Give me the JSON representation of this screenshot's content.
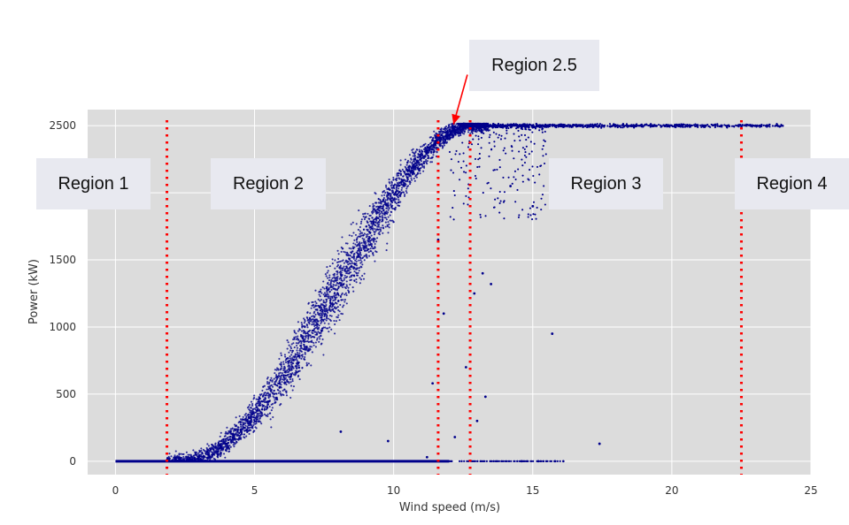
{
  "chart_data": {
    "type": "scatter",
    "title": "",
    "xlabel": "Wind speed (m/s)",
    "ylabel": "Power (kW)",
    "xlim": [
      -1,
      25
    ],
    "ylim": [
      -100,
      2620
    ],
    "x_ticks": [
      0,
      5,
      10,
      15,
      20,
      25
    ],
    "y_ticks": [
      0,
      500,
      1000,
      1500,
      2000,
      2500
    ],
    "y_tick_labels": [
      "0",
      "500",
      "1000",
      "1500",
      "",
      "2500"
    ],
    "grid": true,
    "series": [
      {
        "color": "#00008b",
        "description": "power curve: ~0 kW below 2 m/s, rising roughly cubically to ~2500 kW at ~12.5 m/s, flat at ~2500 kW to ~24 m/s, plus a line of 0 kW points up to ~16 m/s",
        "outliers": [
          {
            "x": 15.7,
            "y": 950
          },
          {
            "x": 17.4,
            "y": 130
          },
          {
            "x": 13.0,
            "y": 300
          },
          {
            "x": 13.3,
            "y": 480
          },
          {
            "x": 12.6,
            "y": 700
          },
          {
            "x": 11.4,
            "y": 580
          },
          {
            "x": 11.8,
            "y": 1100
          },
          {
            "x": 12.9,
            "y": 1250
          },
          {
            "x": 13.5,
            "y": 1320
          },
          {
            "x": 11.2,
            "y": 30
          },
          {
            "x": 12.2,
            "y": 180
          },
          {
            "x": 13.2,
            "y": 1400
          },
          {
            "x": 14.2,
            "y": 2050
          },
          {
            "x": 15.0,
            "y": 1900
          },
          {
            "x": 6.3,
            "y": 630
          },
          {
            "x": 8.1,
            "y": 220
          },
          {
            "x": 9.8,
            "y": 150
          },
          {
            "x": 11.6,
            "y": 1650
          }
        ]
      }
    ],
    "vertical_lines": {
      "color": "#ff0000",
      "style": "dotted",
      "x": [
        1.85,
        11.6,
        12.75,
        22.5
      ]
    },
    "annotations": [
      {
        "text": "Region 1",
        "data_x": -0.6,
        "data_y": 2120
      },
      {
        "text": "Region 2",
        "data_x": 5.5,
        "data_y": 2120
      },
      {
        "text": "Region 2.5",
        "data_x": 15.0,
        "data_y": 2970
      },
      {
        "text": "Region 3",
        "data_x": 17.5,
        "data_y": 2120
      },
      {
        "text": "Region 4",
        "data_x": 24.3,
        "data_y": 2120
      }
    ],
    "arrow": {
      "color": "#ff0000",
      "from": [
        12.65,
        2880
      ],
      "to": [
        12.15,
        2510
      ]
    }
  }
}
